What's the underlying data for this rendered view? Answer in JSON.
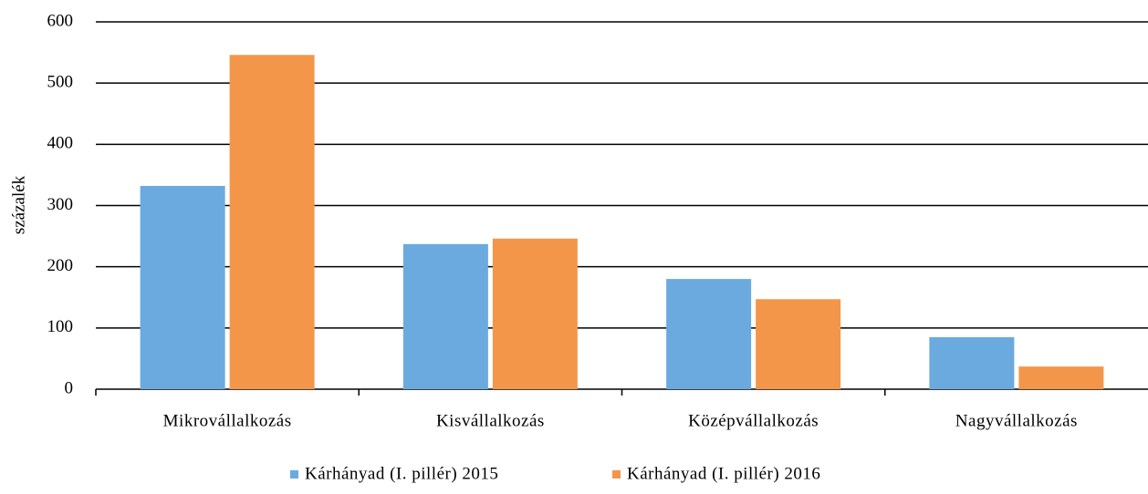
{
  "chart_data": {
    "type": "bar",
    "y_label": "százalék",
    "categories": [
      "Mikrovállalkozás",
      "Kisvállalkozás",
      "Középvállalkozás",
      "Nagyvállalkozás"
    ],
    "series": [
      {
        "name": "Kárhányad (I. pillér) 2015",
        "color": "#6aaadf",
        "values": [
          332,
          237,
          180,
          85
        ]
      },
      {
        "name": "Kárhányad (I. pillér) 2016",
        "color": "#f4964a",
        "values": [
          546,
          246,
          147,
          37
        ]
      }
    ],
    "ylim": [
      0,
      600
    ],
    "yticks": [
      0,
      100,
      200,
      300,
      400,
      500,
      600
    ],
    "grid": true,
    "legend": "bottom"
  }
}
